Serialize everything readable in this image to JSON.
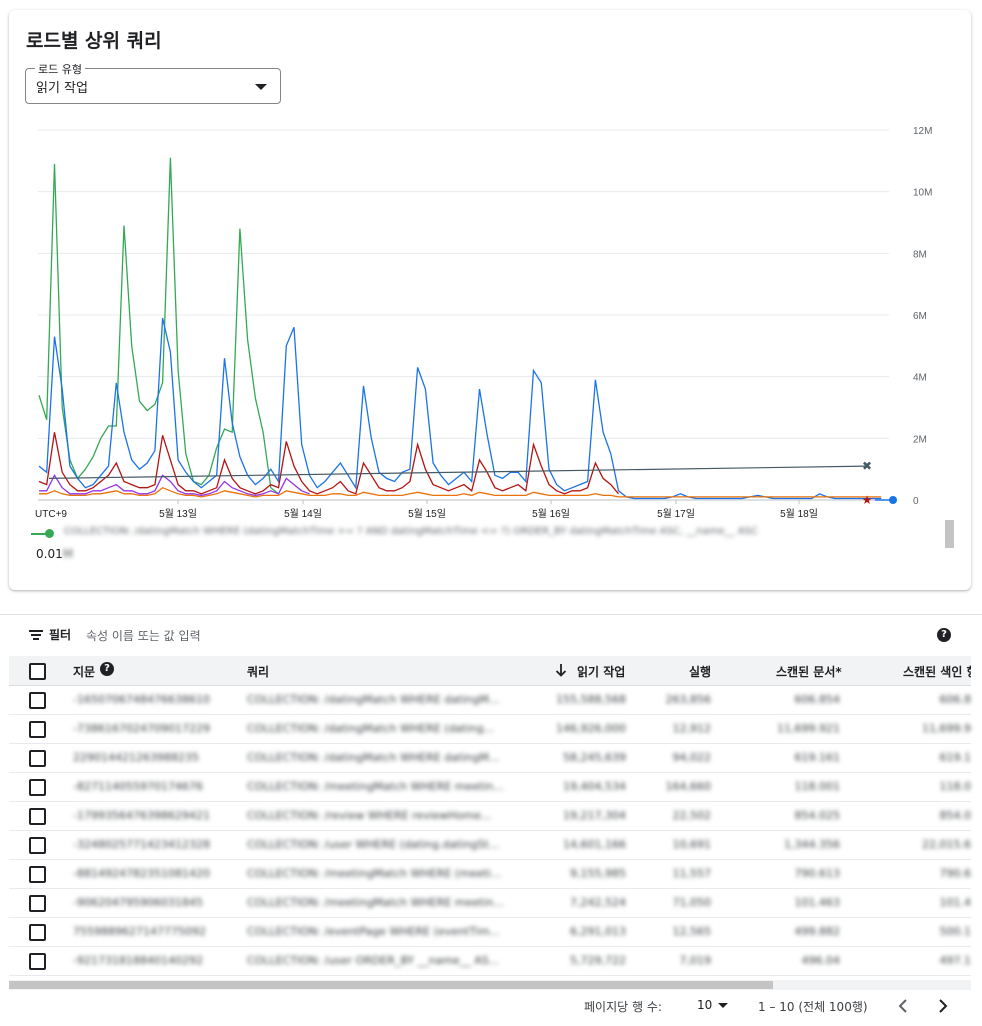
{
  "card": {
    "title": "로드별 상위 쿼리",
    "load_type": {
      "label": "로드 유형",
      "value": "읽기 작업"
    }
  },
  "chart_data": {
    "type": "line",
    "x_ticks": [
      "UTC+9",
      "5월 13일",
      "5월 14일",
      "5월 15일",
      "5월 16일",
      "5월 17일",
      "5월 18일"
    ],
    "y_ticks": [
      "12M",
      "10M",
      "8M",
      "6M",
      "4M",
      "2M",
      "0"
    ],
    "ylim": [
      0,
      12000000
    ],
    "grid": true,
    "series": [
      {
        "color": "#34a853",
        "values": [
          3400000,
          2600000,
          10900000,
          3000000,
          1300000,
          700000,
          1000000,
          1400000,
          2000000,
          2400000,
          2400000,
          8900000,
          5000000,
          3200000,
          2900000,
          3100000,
          3800000,
          11100000,
          4200000,
          1500000,
          600000,
          500000,
          800000,
          1700000,
          2300000,
          2200000,
          8800000,
          5200000,
          3300000,
          2200000,
          400000,
          200000
        ]
      },
      {
        "color": "#1a73e8",
        "values": [
          1100000,
          900000,
          5300000,
          3600000,
          1100000,
          700000,
          400000,
          500000,
          800000,
          1100000,
          3800000,
          2200000,
          1300000,
          1000000,
          1200000,
          1600000,
          5900000,
          4800000,
          1300000,
          900000,
          600000,
          400000,
          600000,
          800000,
          4600000,
          2500000,
          1400000,
          800000,
          500000,
          700000,
          1000000,
          600000,
          5000000,
          5600000,
          1800000,
          800000,
          400000,
          600000,
          900000,
          1200000,
          800000,
          400000,
          3700000,
          2000000,
          900000,
          700000,
          600000,
          900000,
          1000000,
          4300000,
          3600000,
          1200000,
          800000,
          500000,
          700000,
          900000,
          600000,
          3600000,
          2100000,
          800000,
          700000,
          900000,
          900000,
          600000,
          4200000,
          3800000,
          1000000,
          500000,
          300000,
          400000,
          500000,
          600000,
          3900000,
          2200000,
          1500000,
          300000,
          100000,
          50000,
          50000,
          50000,
          50000,
          50000,
          100000,
          200000,
          100000,
          50000,
          50000,
          50000,
          50000,
          50000,
          50000,
          50000,
          100000,
          150000,
          100000,
          50000,
          50000,
          50000,
          50000,
          50000,
          50000,
          200000,
          100000,
          50000,
          50000,
          50000,
          50000,
          50000,
          50000,
          50000
        ]
      },
      {
        "color": "#b31412",
        "values": [
          600000,
          500000,
          2200000,
          900000,
          500000,
          300000,
          300000,
          400000,
          600000,
          800000,
          1200000,
          600000,
          500000,
          400000,
          400000,
          500000,
          2100000,
          1300000,
          500000,
          300000,
          300000,
          200000,
          300000,
          400000,
          1300000,
          700000,
          400000,
          300000,
          200000,
          300000,
          500000,
          400000,
          1900000,
          1100000,
          600000,
          300000,
          200000,
          300000,
          400000,
          600000,
          300000,
          200000,
          1200000,
          800000,
          400000,
          300000,
          300000,
          400000,
          600000,
          1800000,
          1000000,
          500000,
          400000,
          300000,
          400000,
          500000,
          300000,
          1300000,
          900000,
          400000,
          300000,
          400000,
          500000,
          300000,
          1800000,
          1100000,
          500000,
          300000,
          200000,
          300000,
          300000,
          400000,
          1200000,
          700000,
          500000,
          200000
        ]
      },
      {
        "color": "#9334e6",
        "values": [
          300000,
          300000,
          800000,
          400000,
          200000,
          200000,
          200000,
          300000,
          300000,
          400000,
          500000,
          300000,
          300000,
          200000,
          200000,
          300000,
          800000,
          600000,
          300000,
          200000,
          200000,
          150000,
          200000,
          300000,
          600000,
          400000,
          300000,
          200000,
          150000,
          200000,
          300000,
          200000,
          700000,
          500000,
          300000,
          200000
        ]
      },
      {
        "color": "#e8710a",
        "values": [
          200000,
          200000,
          300000,
          200000,
          150000,
          150000,
          150000,
          200000,
          200000,
          250000,
          300000,
          200000,
          200000,
          150000,
          150000,
          200000,
          400000,
          300000,
          200000,
          150000,
          150000,
          100000,
          150000,
          200000,
          300000,
          250000,
          200000,
          150000,
          100000,
          150000,
          150000,
          150000,
          300000,
          250000,
          200000,
          150000,
          150000,
          150000,
          200000,
          200000,
          150000,
          150000,
          250000,
          200000,
          150000,
          150000,
          150000,
          150000,
          200000,
          250000,
          200000,
          150000,
          150000,
          150000,
          150000,
          200000,
          150000,
          250000,
          200000,
          150000,
          150000,
          150000,
          150000,
          150000,
          250000,
          200000,
          150000,
          150000,
          150000,
          150000,
          150000,
          150000,
          200000,
          150000,
          150000,
          100000,
          100000,
          100000,
          100000,
          100000,
          100000,
          100000,
          100000,
          100000,
          100000,
          100000,
          100000,
          100000,
          100000,
          100000,
          100000,
          100000,
          100000,
          100000,
          100000,
          100000,
          100000,
          100000,
          100000,
          100000,
          100000,
          100000,
          100000,
          100000,
          100000,
          100000,
          100000,
          100000,
          100000,
          100000
        ]
      },
      {
        "color": "#455a64",
        "type": "trend",
        "values": [
          700000,
          1100000
        ]
      }
    ],
    "markers": [
      {
        "symbol": "x",
        "color": "#455a64",
        "value": 1100000
      },
      {
        "symbol": "star",
        "color": "#b31412",
        "value": 0
      },
      {
        "symbol": "dot",
        "color": "#1a73e8",
        "value": 0
      }
    ]
  },
  "legend": {
    "query_text": "COLLECTION: /datingMatch WHERE (datingMatchTime >= ? AND datingMatchTime <= ?) ORDER_BY datingMatchTime ASC, __name__ ASC",
    "value": "0.01",
    "value_suffix": "M"
  },
  "filter": {
    "label": "필터",
    "placeholder": "속성 이름 또는 값 입력"
  },
  "table": {
    "columns": [
      "지문",
      "쿼리",
      "읽기 작업",
      "실행",
      "스캔된 문서*",
      "스캔된 색인 항"
    ],
    "rows": [
      [
        "-1650706748476638610",
        "COLLECTION: /datingMatch WHERE datingM...",
        "155,588,568",
        "263,856",
        "606.854",
        "606.8"
      ],
      [
        "-7386167024709017229",
        "COLLECTION: /datingMatch WHERE (dating...",
        "146,926,000",
        "12,912",
        "11,699.921",
        "11,699.9"
      ],
      [
        "229014421263988235",
        "COLLECTION: /datingMatch WHERE datingM...",
        "58,245,639",
        "94,022",
        "619.161",
        "619.1"
      ],
      [
        "-827114055970174676",
        "COLLECTION: /meetingMatch WHERE meetin...",
        "19,404,534",
        "164,660",
        "118.001",
        "118.0"
      ],
      [
        "-1799356476398629421",
        "COLLECTION: /review WHERE reviewHome...",
        "19,217,304",
        "22,502",
        "854.025",
        "854.0"
      ],
      [
        "-3248025771423412328",
        "COLLECTION: /user WHERE (dating.datingSt...",
        "14,601,166",
        "10,691",
        "1,344.356",
        "22,015.6"
      ],
      [
        "-8814924782351081420",
        "COLLECTION: /meetingMatch WHERE (meeti...",
        "9,155,985",
        "11,557",
        "790.613",
        "790.6"
      ],
      [
        "-906204795906031845",
        "COLLECTION: /meetingMatch WHERE meetin...",
        "7,242,524",
        "71,050",
        "101.463",
        "101.4"
      ],
      [
        "7559889627147775092",
        "COLLECTION: /eventPage WHERE (eventTim...",
        "6,291,013",
        "12,565",
        "499.882",
        "500.1"
      ],
      [
        "-921731818840140292",
        "COLLECTION: /user ORDER_BY __name__ AS...",
        "5,729,722",
        "7,019",
        "496.04",
        "497.1"
      ]
    ]
  },
  "pagination": {
    "rows_per_page_label": "페이지당 행 수:",
    "rows_per_page": "10",
    "range": "1 – 10 (전체 100행)"
  }
}
